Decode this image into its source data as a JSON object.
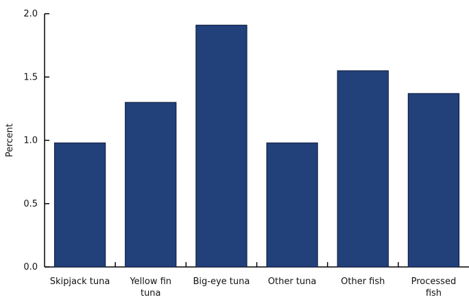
{
  "chart_data": {
    "type": "bar",
    "title": "",
    "xlabel": "",
    "ylabel": "Percent",
    "categories": [
      [
        "Skipjack tuna"
      ],
      [
        "Yellow fin",
        "tuna"
      ],
      [
        "Big-eye tuna"
      ],
      [
        "Other tuna"
      ],
      [
        "Other fish"
      ],
      [
        "Processed",
        "fish"
      ]
    ],
    "values": [
      0.98,
      1.3,
      1.91,
      0.98,
      1.55,
      1.37
    ],
    "ylim": [
      0,
      2.0
    ],
    "yticks": [
      "0.0",
      "0.5",
      "1.0",
      "1.5",
      "2.0"
    ],
    "grid": false,
    "colors": {
      "bar": "#22407a",
      "bar_edge": "#0b1a3a",
      "axis": "#000000"
    }
  }
}
